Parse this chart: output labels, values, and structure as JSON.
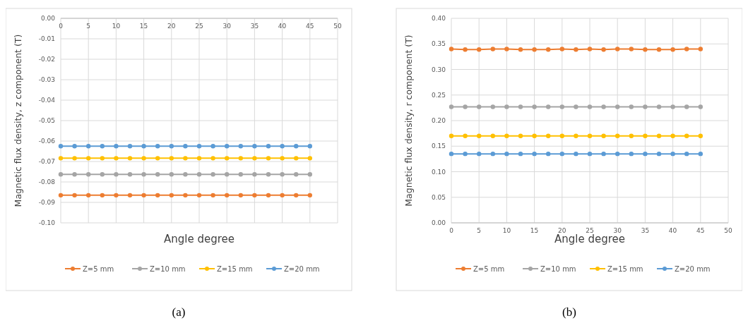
{
  "chart_data": [
    {
      "type": "line",
      "xlabel": "Angle degree",
      "ylabel": "Magnetic flux density, z component (T)",
      "annotations": [
        "(a)"
      ],
      "x": [
        0,
        2.5,
        5,
        7.5,
        10,
        12.5,
        15,
        17.5,
        20,
        22.5,
        25,
        27.5,
        30,
        32.5,
        35,
        37.5,
        40,
        42.5,
        45
      ],
      "series": [
        {
          "name": "Z=5 mm",
          "color": "#ed7d31",
          "values": [
            -0.0865,
            -0.0865,
            -0.0865,
            -0.0865,
            -0.0865,
            -0.0865,
            -0.0865,
            -0.0865,
            -0.0865,
            -0.0865,
            -0.0865,
            -0.0865,
            -0.0865,
            -0.0865,
            -0.0865,
            -0.0865,
            -0.0865,
            -0.0865,
            -0.0865
          ]
        },
        {
          "name": "Z=10 mm",
          "color": "#a5a5a5",
          "values": [
            -0.0763,
            -0.0763,
            -0.0763,
            -0.0763,
            -0.0763,
            -0.0763,
            -0.0763,
            -0.0763,
            -0.0763,
            -0.0763,
            -0.0763,
            -0.0763,
            -0.0763,
            -0.0763,
            -0.0763,
            -0.0763,
            -0.0763,
            -0.0763,
            -0.0763
          ]
        },
        {
          "name": "Z=15 mm",
          "color": "#ffc000",
          "values": [
            -0.0684,
            -0.0684,
            -0.0684,
            -0.0684,
            -0.0684,
            -0.0684,
            -0.0684,
            -0.0684,
            -0.0684,
            -0.0684,
            -0.0684,
            -0.0684,
            -0.0684,
            -0.0684,
            -0.0684,
            -0.0684,
            -0.0684,
            -0.0684,
            -0.0684
          ]
        },
        {
          "name": "Z=20 mm",
          "color": "#5b9bd5",
          "values": [
            -0.0625,
            -0.0625,
            -0.0625,
            -0.0625,
            -0.0625,
            -0.0625,
            -0.0625,
            -0.0625,
            -0.0625,
            -0.0625,
            -0.0625,
            -0.0625,
            -0.0625,
            -0.0625,
            -0.0625,
            -0.0625,
            -0.0625,
            -0.0625,
            -0.0625
          ]
        }
      ],
      "xlim": [
        0,
        50
      ],
      "xticks": [
        0,
        5,
        10,
        15,
        20,
        25,
        30,
        35,
        40,
        45,
        50
      ],
      "ylim": [
        -0.1,
        0
      ],
      "yticks": [
        {
          "value": -0.1,
          "label": "-0.10"
        },
        {
          "value": -0.09,
          "label": "-0.09"
        },
        {
          "value": -0.08,
          "label": "-0.08"
        },
        {
          "value": -0.07,
          "label": "-0.07"
        },
        {
          "value": -0.06,
          "label": "-0.06"
        },
        {
          "value": -0.05,
          "label": "-0.05"
        },
        {
          "value": -0.04,
          "label": "-0.04"
        },
        {
          "value": -0.03,
          "label": "-0.03"
        },
        {
          "value": -0.02,
          "label": "-0.02"
        },
        {
          "value": -0.01,
          "label": "-0.01"
        },
        {
          "value": 0,
          "label": "0.00"
        }
      ],
      "grid": true,
      "legend": "bottom",
      "marker": "circle"
    },
    {
      "type": "line",
      "xlabel": "Angle degree",
      "ylabel": "Magnetic flux density, r component (T)",
      "annotations": [
        "(b)"
      ],
      "x": [
        0,
        2.5,
        5,
        7.5,
        10,
        12.5,
        15,
        17.5,
        20,
        22.5,
        25,
        27.5,
        30,
        32.5,
        35,
        37.5,
        40,
        42.5,
        45
      ],
      "series": [
        {
          "name": "Z=5 mm",
          "color": "#ed7d31",
          "values": [
            0.34,
            0.339,
            0.339,
            0.34,
            0.34,
            0.339,
            0.339,
            0.339,
            0.34,
            0.339,
            0.34,
            0.339,
            0.34,
            0.34,
            0.339,
            0.339,
            0.339,
            0.34,
            0.34
          ]
        },
        {
          "name": "Z=10 mm",
          "color": "#a5a5a5",
          "values": [
            0.227,
            0.227,
            0.227,
            0.227,
            0.227,
            0.227,
            0.227,
            0.227,
            0.227,
            0.227,
            0.227,
            0.227,
            0.227,
            0.227,
            0.227,
            0.227,
            0.227,
            0.227,
            0.227
          ]
        },
        {
          "name": "Z=15 mm",
          "color": "#ffc000",
          "values": [
            0.17,
            0.17,
            0.17,
            0.17,
            0.17,
            0.17,
            0.17,
            0.17,
            0.17,
            0.17,
            0.17,
            0.17,
            0.17,
            0.17,
            0.17,
            0.17,
            0.17,
            0.17,
            0.17
          ]
        },
        {
          "name": "Z=20 mm",
          "color": "#5b9bd5",
          "values": [
            0.135,
            0.135,
            0.135,
            0.135,
            0.135,
            0.135,
            0.135,
            0.135,
            0.135,
            0.135,
            0.135,
            0.135,
            0.135,
            0.135,
            0.135,
            0.135,
            0.135,
            0.135,
            0.135
          ]
        }
      ],
      "xlim": [
        0,
        50
      ],
      "xticks": [
        0,
        5,
        10,
        15,
        20,
        25,
        30,
        35,
        40,
        45,
        50
      ],
      "ylim": [
        0,
        0.4
      ],
      "yticks": [
        {
          "value": 0,
          "label": "0.00"
        },
        {
          "value": 0.05,
          "label": "0.05"
        },
        {
          "value": 0.1,
          "label": "0.10"
        },
        {
          "value": 0.15,
          "label": "0.15"
        },
        {
          "value": 0.2,
          "label": "0.20"
        },
        {
          "value": 0.25,
          "label": "0.25"
        },
        {
          "value": 0.3,
          "label": "0.30"
        },
        {
          "value": 0.35,
          "label": "0.35"
        },
        {
          "value": 0.4,
          "label": "0.40"
        }
      ],
      "grid": true,
      "legend": "bottom",
      "marker": "circle"
    }
  ]
}
